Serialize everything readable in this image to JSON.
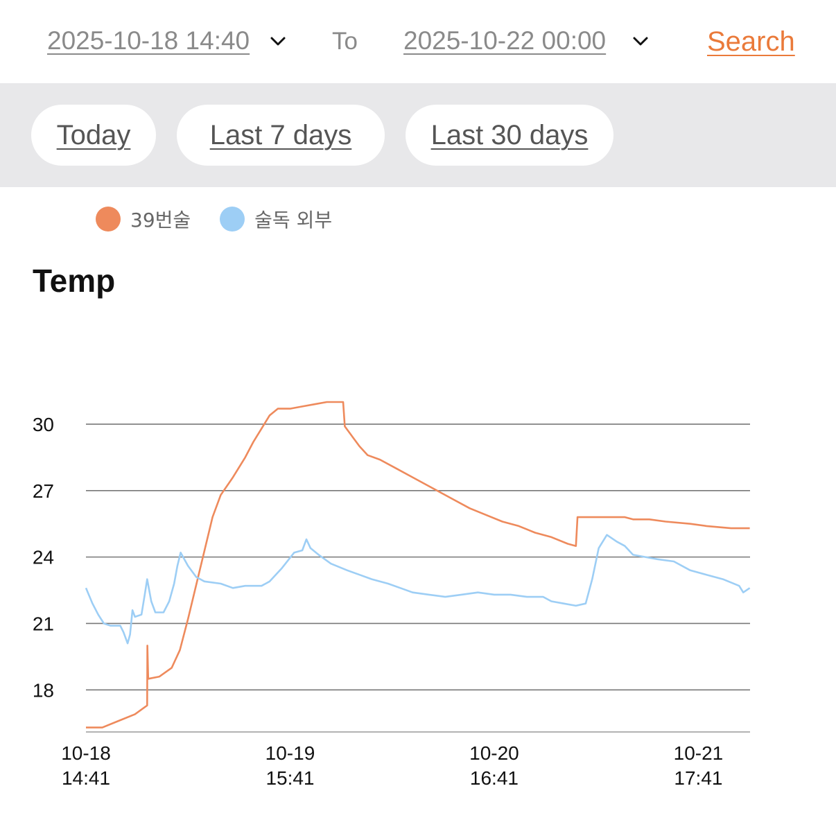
{
  "header": {
    "start_date": "2025-10-18 14:40",
    "to_label": "To",
    "end_date": "2025-10-22 00:00",
    "search_label": "Search"
  },
  "quick_ranges": [
    {
      "label": "Today"
    },
    {
      "label": "Last 7 days"
    },
    {
      "label": "Last 30 days"
    }
  ],
  "colors": {
    "series_1": "#ee8a5c",
    "series_2": "#9dcef5",
    "accent": "#ea7a3a"
  },
  "chart_data": {
    "type": "line",
    "title": "Temp",
    "xlabel": "",
    "ylabel": "",
    "x_unit": "hours",
    "xlim": [
      0,
      81.33
    ],
    "ylim": [
      16.1,
      31
    ],
    "y_ticks": [
      18,
      21,
      24,
      27,
      30
    ],
    "x_ticks": [
      {
        "x": 0,
        "label": [
          "10-18",
          "14:41"
        ]
      },
      {
        "x": 25,
        "label": [
          "10-19",
          "15:41"
        ]
      },
      {
        "x": 50,
        "label": [
          "10-20",
          "16:41"
        ]
      },
      {
        "x": 75,
        "label": [
          "10-21",
          "17:41"
        ]
      }
    ],
    "grid": true,
    "legend": "top-left",
    "series": [
      {
        "name": "39번술",
        "color": "#ee8a5c",
        "points": [
          [
            0,
            16.3
          ],
          [
            2,
            16.3
          ],
          [
            4,
            16.6
          ],
          [
            6,
            16.9
          ],
          [
            7.5,
            17.3
          ],
          [
            7.52,
            20.0
          ],
          [
            7.62,
            18.5
          ],
          [
            9,
            18.6
          ],
          [
            10.5,
            19.0
          ],
          [
            11.5,
            19.8
          ],
          [
            12.5,
            21.2
          ],
          [
            14,
            23.5
          ],
          [
            15.5,
            25.8
          ],
          [
            16.5,
            26.8
          ],
          [
            18,
            27.6
          ],
          [
            19.5,
            28.5
          ],
          [
            20.5,
            29.2
          ],
          [
            21.5,
            29.8
          ],
          [
            22.5,
            30.4
          ],
          [
            23.5,
            30.7
          ],
          [
            25,
            30.7
          ],
          [
            26.5,
            30.8
          ],
          [
            28,
            30.9
          ],
          [
            29.5,
            31.0
          ],
          [
            31.5,
            31.0
          ],
          [
            31.7,
            29.9
          ],
          [
            32.5,
            29.5
          ],
          [
            33.5,
            29.0
          ],
          [
            34.5,
            28.6
          ],
          [
            36,
            28.4
          ],
          [
            38,
            28.0
          ],
          [
            40,
            27.6
          ],
          [
            42,
            27.2
          ],
          [
            43.5,
            26.9
          ],
          [
            45,
            26.6
          ],
          [
            47,
            26.2
          ],
          [
            49,
            25.9
          ],
          [
            51,
            25.6
          ],
          [
            53,
            25.4
          ],
          [
            55,
            25.1
          ],
          [
            57,
            24.9
          ],
          [
            59,
            24.6
          ],
          [
            60,
            24.5
          ],
          [
            60.2,
            25.8
          ],
          [
            63,
            25.8
          ],
          [
            66,
            25.8
          ],
          [
            67,
            25.7
          ],
          [
            69,
            25.7
          ],
          [
            71,
            25.6
          ],
          [
            74,
            25.5
          ],
          [
            76,
            25.4
          ],
          [
            79,
            25.3
          ],
          [
            81.3,
            25.3
          ]
        ]
      },
      {
        "name": "술독 외부",
        "color": "#9dcef5",
        "points": [
          [
            0,
            22.6
          ],
          [
            0.8,
            21.9
          ],
          [
            1.5,
            21.4
          ],
          [
            2.2,
            21.0
          ],
          [
            3,
            20.9
          ],
          [
            4.2,
            20.9
          ],
          [
            4.6,
            20.6
          ],
          [
            5.1,
            20.1
          ],
          [
            5.4,
            20.5
          ],
          [
            5.7,
            21.6
          ],
          [
            6.0,
            21.3
          ],
          [
            6.8,
            21.4
          ],
          [
            7.2,
            22.3
          ],
          [
            7.5,
            23.0
          ],
          [
            8.0,
            22.0
          ],
          [
            8.5,
            21.5
          ],
          [
            9.5,
            21.5
          ],
          [
            10.2,
            22.0
          ],
          [
            10.8,
            22.8
          ],
          [
            11.2,
            23.6
          ],
          [
            11.6,
            24.2
          ],
          [
            12.5,
            23.6
          ],
          [
            13.5,
            23.1
          ],
          [
            14.5,
            22.9
          ],
          [
            16.5,
            22.8
          ],
          [
            18,
            22.6
          ],
          [
            19.5,
            22.7
          ],
          [
            21.5,
            22.7
          ],
          [
            22.5,
            22.9
          ],
          [
            24,
            23.5
          ],
          [
            25.5,
            24.2
          ],
          [
            26.5,
            24.3
          ],
          [
            27,
            24.8
          ],
          [
            27.5,
            24.4
          ],
          [
            28.5,
            24.1
          ],
          [
            30,
            23.7
          ],
          [
            32,
            23.4
          ],
          [
            33.5,
            23.2
          ],
          [
            35,
            23.0
          ],
          [
            37,
            22.8
          ],
          [
            38.5,
            22.6
          ],
          [
            40,
            22.4
          ],
          [
            42,
            22.3
          ],
          [
            44,
            22.2
          ],
          [
            46,
            22.3
          ],
          [
            48,
            22.4
          ],
          [
            50,
            22.3
          ],
          [
            52,
            22.3
          ],
          [
            54,
            22.2
          ],
          [
            56,
            22.2
          ],
          [
            57,
            22.0
          ],
          [
            58.5,
            21.9
          ],
          [
            60,
            21.8
          ],
          [
            61.2,
            21.9
          ],
          [
            62,
            23.0
          ],
          [
            62.8,
            24.4
          ],
          [
            63.8,
            25.0
          ],
          [
            65,
            24.7
          ],
          [
            66,
            24.5
          ],
          [
            67,
            24.1
          ],
          [
            68.5,
            24.0
          ],
          [
            70,
            23.9
          ],
          [
            72,
            23.8
          ],
          [
            74,
            23.4
          ],
          [
            76,
            23.2
          ],
          [
            78,
            23.0
          ],
          [
            80,
            22.7
          ],
          [
            80.5,
            22.4
          ],
          [
            81.3,
            22.6
          ]
        ]
      }
    ]
  }
}
